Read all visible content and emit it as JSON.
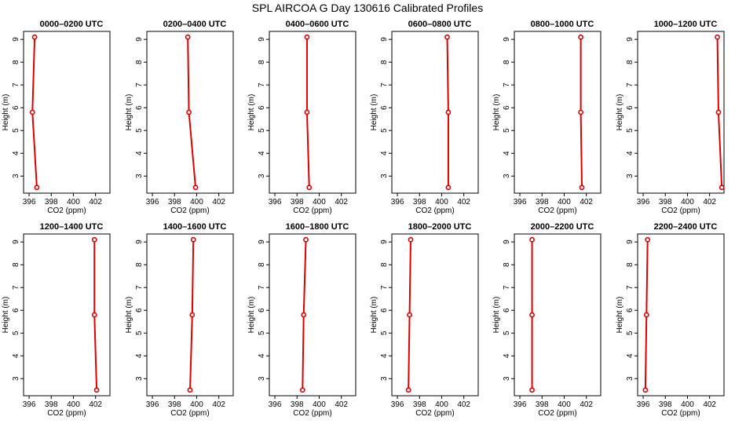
{
  "title": "SPL AIRCOA G  Day 130616  Calibrated Profiles",
  "colors": {
    "profile": "#dd0000",
    "axis": "#000000"
  },
  "chart_data": {
    "type": "line",
    "layout": "2 rows x 6 panels",
    "xlabel": "CO2 (ppm)",
    "ylabel": "Height (m)",
    "xlim": [
      395.5,
      403.3
    ],
    "ylim": [
      2.25,
      9.35
    ],
    "x_ticks": [
      396,
      398,
      400,
      402
    ],
    "y_ticks": [
      3,
      4,
      5,
      6,
      7,
      8,
      9
    ],
    "heights": [
      9.1,
      5.8,
      2.5
    ],
    "panels": [
      {
        "title": "0000–0200 UTC",
        "co2": [
          396.5,
          396.3,
          396.7
        ]
      },
      {
        "title": "0200–0400 UTC",
        "co2": [
          399.2,
          399.3,
          399.9
        ]
      },
      {
        "title": "0400–0600 UTC",
        "co2": [
          398.9,
          398.9,
          399.1
        ]
      },
      {
        "title": "0600–0800 UTC",
        "co2": [
          400.5,
          400.6,
          400.6
        ]
      },
      {
        "title": "0800–1000 UTC",
        "co2": [
          401.5,
          401.5,
          401.6
        ]
      },
      {
        "title": "1000–1200 UTC",
        "co2": [
          402.7,
          402.8,
          403.1
        ]
      },
      {
        "title": "1200–1400 UTC",
        "co2": [
          401.9,
          401.9,
          402.1
        ]
      },
      {
        "title": "1400–1600 UTC",
        "co2": [
          399.7,
          399.6,
          399.4
        ]
      },
      {
        "title": "1600–1800 UTC",
        "co2": [
          398.8,
          398.6,
          398.5
        ]
      },
      {
        "title": "1800–2000 UTC",
        "co2": [
          397.2,
          397.1,
          397.0
        ]
      },
      {
        "title": "2000–2200 UTC",
        "co2": [
          397.1,
          397.1,
          397.1
        ]
      },
      {
        "title": "2200–2400 UTC",
        "co2": [
          396.4,
          396.3,
          396.2
        ]
      }
    ]
  }
}
